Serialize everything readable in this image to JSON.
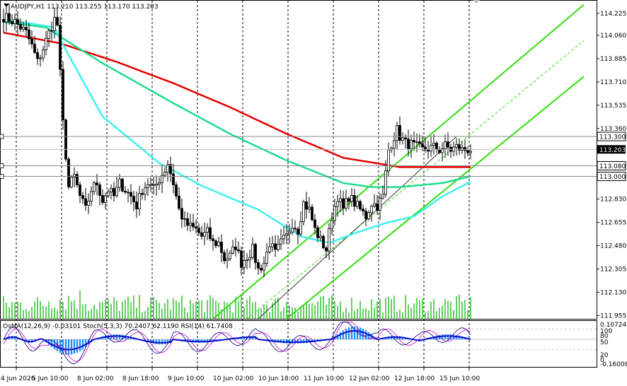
{
  "header": {
    "title": "AUDJPY,H1",
    "ohlc": "113.210 113.255 113.170 113.203"
  },
  "indicator_header": {
    "osma": "OsMA(12,26,9) -0.03101",
    "stoch": "Stoch(5,3,3) 70.2407 62.1190",
    "rsi": "RSI(14) 61.7408"
  },
  "colors": {
    "candle": "#000000",
    "ema_red": "#e60000",
    "ema_green": "#1fdc8c",
    "ema_cyan": "#3ef0f0",
    "ema_blue": "#1010c8",
    "channel": "#33dd11",
    "volume": "#22bb22",
    "osma": "#1e90ff",
    "grid": "#000000",
    "stoch_signal": "#cc00cc"
  },
  "chart_data": {
    "type": "candlestick",
    "symbol": "AUDJPY",
    "timeframe": "H1",
    "ylim": [
      11.905,
      114.32
    ],
    "price_min": 111.93,
    "price_max": 114.32,
    "y_ticks": [
      "114.225",
      "114.060",
      "113.885",
      "113.710",
      "113.535",
      "113.360",
      "113.203",
      "113.080",
      "113.000",
      "112.830",
      "112.655",
      "112.480",
      "112.305",
      "112.130",
      "111.955"
    ],
    "y_tick_values": [
      114.225,
      114.06,
      113.885,
      113.71,
      113.535,
      113.36,
      113.203,
      113.08,
      113.0,
      112.83,
      112.655,
      112.48,
      112.305,
      112.13,
      111.955
    ],
    "highlight_levels": [
      {
        "label": "113.300",
        "value": 113.3,
        "style": "box"
      },
      {
        "label": "113.203",
        "value": 113.203,
        "style": "current"
      },
      {
        "label": "113.080",
        "value": 113.08,
        "style": "box"
      },
      {
        "label": "113.000",
        "value": 113.0,
        "style": "box"
      }
    ],
    "x_ticks": [
      "4 Jun 2026",
      "5 Jun 10:00",
      "8 Jun 02:00",
      "8 Jun 18:00",
      "9 Jun 10:00",
      "10 Jun 02:00",
      "10 Jun 18:00",
      "11 Jun 10:00",
      "12 Jun 02:00",
      "12 Jun 18:00",
      "15 Jun 10:00"
    ],
    "x_tick_index": [
      0,
      16,
      32,
      48,
      64,
      80,
      96,
      112,
      128,
      144,
      160
    ],
    "bar_count": 166,
    "anchors": [
      [
        0,
        114.2
      ],
      [
        4,
        114.16
      ],
      [
        8,
        114.08
      ],
      [
        10,
        113.98
      ],
      [
        12,
        113.86
      ],
      [
        14,
        113.96
      ],
      [
        16,
        114.08
      ],
      [
        18,
        114.18
      ],
      [
        19,
        114.14
      ],
      [
        21,
        113.4
      ],
      [
        23,
        112.92
      ],
      [
        25,
        113.0
      ],
      [
        27,
        112.85
      ],
      [
        29,
        112.75
      ],
      [
        31,
        112.9
      ],
      [
        33,
        112.95
      ],
      [
        35,
        112.82
      ],
      [
        37,
        112.9
      ],
      [
        39,
        112.85
      ],
      [
        41,
        112.95
      ],
      [
        43,
        112.9
      ],
      [
        45,
        112.85
      ],
      [
        47,
        112.78
      ],
      [
        49,
        112.9
      ],
      [
        51,
        112.95
      ],
      [
        53,
        112.9
      ],
      [
        55,
        112.98
      ],
      [
        57,
        113.05
      ],
      [
        58,
        113.1
      ],
      [
        60,
        112.95
      ],
      [
        62,
        112.75
      ],
      [
        64,
        112.65
      ],
      [
        66,
        112.62
      ],
      [
        68,
        112.6
      ],
      [
        70,
        112.55
      ],
      [
        72,
        112.58
      ],
      [
        74,
        112.5
      ],
      [
        76,
        112.5
      ],
      [
        78,
        112.38
      ],
      [
        80,
        112.4
      ],
      [
        82,
        112.48
      ],
      [
        84,
        112.35
      ],
      [
        86,
        112.4
      ],
      [
        88,
        112.45
      ],
      [
        90,
        112.3
      ],
      [
        92,
        112.35
      ],
      [
        94,
        112.5
      ],
      [
        96,
        112.42
      ],
      [
        98,
        112.5
      ],
      [
        100,
        112.55
      ],
      [
        102,
        112.65
      ],
      [
        104,
        112.6
      ],
      [
        106,
        112.8
      ],
      [
        108,
        112.75
      ],
      [
        110,
        112.6
      ],
      [
        112,
        112.52
      ],
      [
        114,
        112.45
      ],
      [
        116,
        112.7
      ],
      [
        118,
        112.85
      ],
      [
        120,
        112.75
      ],
      [
        122,
        112.85
      ],
      [
        124,
        112.8
      ],
      [
        126,
        112.75
      ],
      [
        128,
        112.7
      ],
      [
        130,
        112.8
      ],
      [
        132,
        112.78
      ],
      [
        134,
        112.85
      ],
      [
        136,
        113.2
      ],
      [
        138,
        113.3
      ],
      [
        139,
        113.35
      ],
      [
        140,
        113.3
      ],
      [
        142,
        113.25
      ],
      [
        144,
        113.24
      ],
      [
        146,
        113.22
      ],
      [
        148,
        113.2
      ],
      [
        150,
        113.21
      ],
      [
        152,
        113.22
      ],
      [
        154,
        113.2
      ],
      [
        156,
        113.23
      ],
      [
        158,
        113.2
      ],
      [
        160,
        113.22
      ],
      [
        162,
        113.2
      ],
      [
        165,
        113.203
      ]
    ],
    "ema_anchors": {
      "red": [
        [
          0,
          114.08
        ],
        [
          20,
          114.0
        ],
        [
          40,
          113.86
        ],
        [
          60,
          113.7
        ],
        [
          80,
          113.52
        ],
        [
          100,
          113.32
        ],
        [
          120,
          113.14
        ],
        [
          140,
          113.07
        ],
        [
          165,
          113.07
        ]
      ],
      "green": [
        [
          0,
          114.16
        ],
        [
          15,
          114.12
        ],
        [
          20,
          114.05
        ],
        [
          35,
          113.85
        ],
        [
          60,
          113.55
        ],
        [
          80,
          113.32
        ],
        [
          100,
          113.12
        ],
        [
          120,
          112.95
        ],
        [
          130,
          112.92
        ],
        [
          140,
          112.92
        ],
        [
          155,
          112.95
        ],
        [
          165,
          113.0
        ]
      ],
      "cyan": [
        [
          0,
          114.18
        ],
        [
          18,
          114.12
        ],
        [
          22,
          113.95
        ],
        [
          35,
          113.45
        ],
        [
          55,
          113.1
        ],
        [
          70,
          112.93
        ],
        [
          90,
          112.75
        ],
        [
          105,
          112.55
        ],
        [
          115,
          112.5
        ],
        [
          125,
          112.58
        ],
        [
          135,
          112.65
        ],
        [
          145,
          112.7
        ],
        [
          155,
          112.85
        ],
        [
          165,
          112.96
        ]
      ]
    },
    "channel_lines": [
      {
        "name": "upper",
        "from": [
          74,
          111.93
        ],
        "to": [
          205,
          114.29
        ],
        "dash": false
      },
      {
        "name": "middle",
        "from": [
          86,
          111.93
        ],
        "to": [
          205,
          114.02
        ],
        "dash": true
      },
      {
        "name": "lower",
        "from": [
          100,
          111.93
        ],
        "to": [
          205,
          113.75
        ],
        "dash": false
      }
    ],
    "grid": "dashed vertical",
    "legend": "none"
  },
  "osc_data": {
    "ylim": [
      -0.16,
      0.107
    ],
    "ticks_left": [
      "0.107240",
      "-0.160080"
    ],
    "tick_values": [
      0.10724,
      -0.16008
    ],
    "rsi_ticks": [
      "100",
      "80",
      "50",
      "20",
      "0"
    ]
  }
}
